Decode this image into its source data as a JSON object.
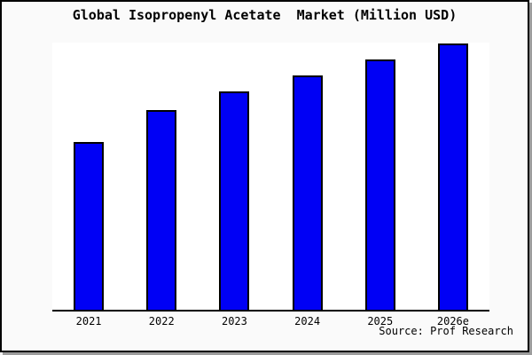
{
  "colors": {
    "outer_background": "#f2f2f2",
    "frame_background": "#fafafa",
    "plot_background": "#ffffff",
    "frame_border": "#000000",
    "shadow": "#9c9c9c",
    "text": "#000000"
  },
  "chart_data": {
    "type": "bar",
    "title": "Global Isopropenyl Acetate  Market (Million USD)",
    "unit": "Million USD",
    "categories": [
      "2021",
      "2022",
      "2023",
      "2024",
      "2025",
      "2026e"
    ],
    "values": [
      63,
      75,
      82,
      88,
      94,
      100
    ],
    "values_scale_note": "relative index estimated from bar heights, 2026e = 100; no y-axis tick labels or gridlines are shown",
    "ylim": [
      0,
      101
    ],
    "grid": false,
    "legend": false,
    "y_axis_ticks_visible": false,
    "bar_fill_color": "#0000F5",
    "bar_border_color": "#000000",
    "source_note": "Source: Prof Research"
  }
}
